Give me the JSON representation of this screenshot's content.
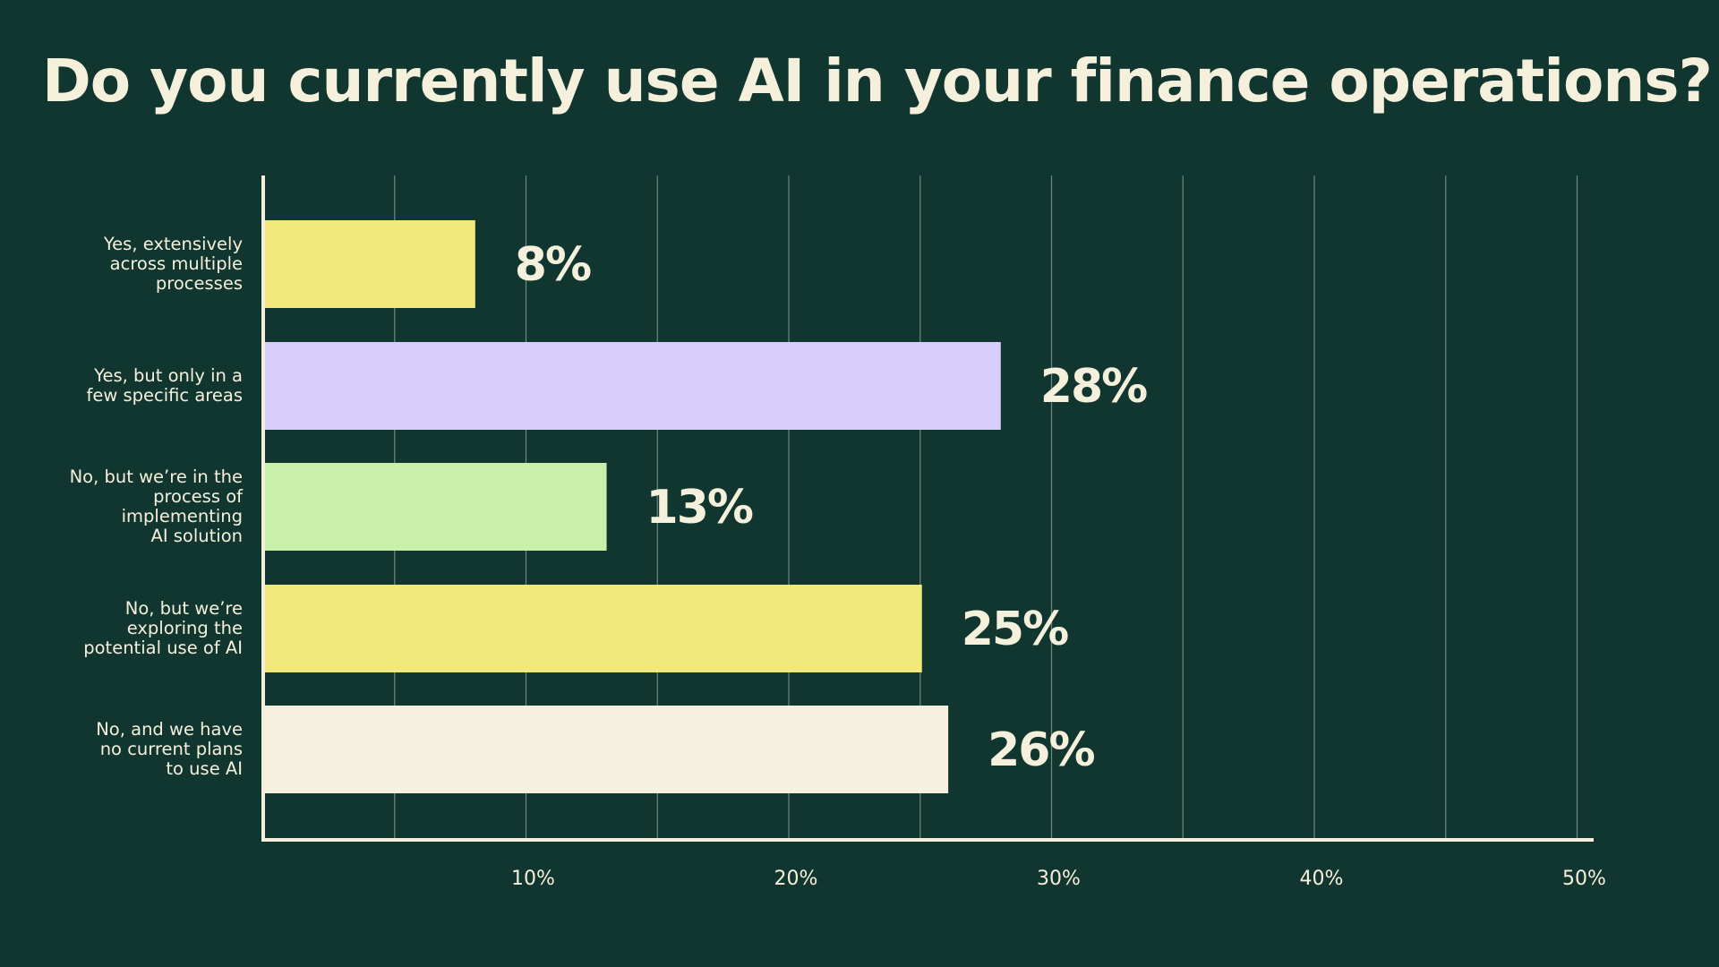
{
  "chart_data": {
    "type": "bar",
    "orientation": "horizontal",
    "title": "Do you currently use AI in your finance operations?",
    "xlabel": "",
    "ylabel": "",
    "categories": [
      "Yes, extensively\nacross multiple\nprocesses",
      "Yes, but only in a\nfew specific areas",
      "No, but we’re in the\nprocess of\nimplementing\nAI solution",
      "No, but we’re\nexploring the\npotential use of AI",
      "No, and we have\nno current plans\nto use AI"
    ],
    "values": [
      8,
      28,
      13,
      25,
      26
    ],
    "data_labels": [
      "8%",
      "28%",
      "13%",
      "25%",
      "26%"
    ],
    "bar_colors": [
      "#f1e87c",
      "#d7cdfb",
      "#c9f0a8",
      "#f1e87c",
      "#f6f1de"
    ],
    "xlim": [
      0,
      50
    ],
    "x_ticks": [
      10,
      20,
      30,
      40,
      50
    ],
    "x_tick_labels": [
      "10%",
      "20%",
      "30%",
      "40%",
      "50%"
    ],
    "grid": true,
    "legend": "none"
  },
  "colors": {
    "background": "#113630",
    "text": "#f5f0dc",
    "axis": "#f5f0dc",
    "grid": "#8fa39c"
  }
}
